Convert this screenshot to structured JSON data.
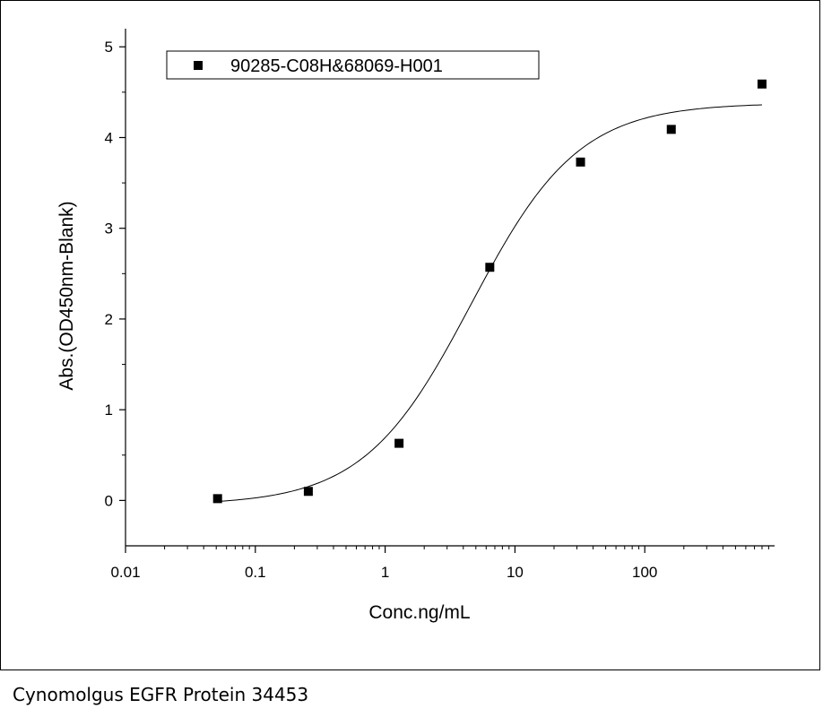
{
  "caption": "Cynomolgus EGFR Protein 34453",
  "chart_data": {
    "type": "scatter",
    "xlabel": "Conc.ng/mL",
    "ylabel": "Abs.(OD450nm-Blank)",
    "xscale": "log",
    "xlim": [
      0.01,
      1000
    ],
    "ylim": [
      -0.5,
      5.2
    ],
    "x_ticks": [
      0.01,
      0.1,
      1,
      10,
      100
    ],
    "x_tick_labels": [
      "0.01",
      "0.1",
      "1",
      "10",
      "100"
    ],
    "y_ticks": [
      0,
      1,
      2,
      3,
      4,
      5
    ],
    "y_tick_labels": [
      "0",
      "1",
      "2",
      "3",
      "4",
      "5"
    ],
    "legend_position": "top-left",
    "grid": false,
    "series": [
      {
        "name": "90285-C08H&68069-H001",
        "marker": "square",
        "color": "#000000",
        "x": [
          0.0512,
          0.256,
          1.28,
          6.4,
          32,
          160,
          800
        ],
        "y": [
          0.02,
          0.1,
          0.63,
          2.57,
          3.73,
          4.09,
          4.59
        ]
      }
    ],
    "fit_curve": {
      "model": "4PL",
      "bottom": -0.05,
      "top": 4.38,
      "ec50": 4.6,
      "hill": 1.05,
      "x_range": [
        0.0512,
        800
      ]
    }
  }
}
